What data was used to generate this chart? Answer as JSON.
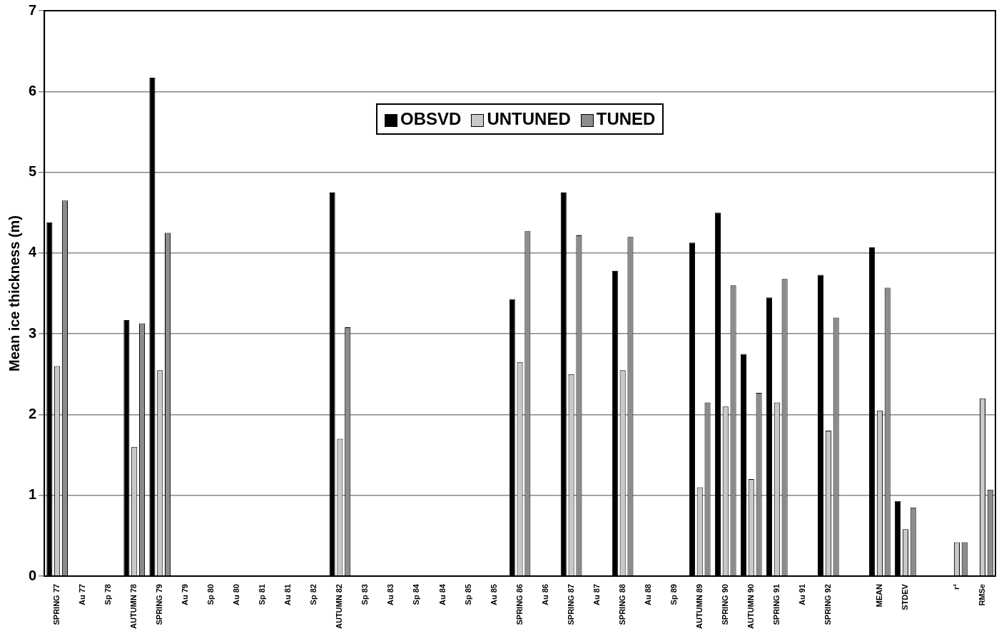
{
  "chart_data": {
    "type": "bar",
    "ylabel": "Mean ice thickness (m)",
    "categories": [
      "SPRING 77",
      "Au 77",
      "Sp 78",
      "AUTUMN 78",
      "SPRING 79",
      "Au 79",
      "Sp 80",
      "Au 80",
      "Sp 81",
      "Au 81",
      "Sp 82",
      "AUTUMN 82",
      "Sp 83",
      "Au 83",
      "Sp 84",
      "Au 84",
      "Sp 85",
      "Au 85",
      "SPRING 86",
      "Au 86",
      "SPRING 87",
      "Au 87",
      "SPRING 88",
      "Au 88",
      "Sp 89",
      "AUTUMN 89",
      "SPRING 90",
      "AUTUMN 90",
      "SPRING 91",
      "Au 91",
      "SPRING 92",
      null,
      "MEAN",
      "STDEV",
      null,
      "r²",
      "RMSe"
    ],
    "series": [
      {
        "name": "OBSVD",
        "color": "#000000",
        "values": [
          4.38,
          null,
          null,
          3.17,
          6.17,
          null,
          null,
          null,
          null,
          null,
          null,
          4.75,
          null,
          null,
          null,
          null,
          null,
          null,
          3.43,
          null,
          4.75,
          null,
          3.78,
          null,
          null,
          4.13,
          4.5,
          2.75,
          3.45,
          null,
          3.73,
          null,
          4.07,
          0.93,
          null,
          null,
          null
        ]
      },
      {
        "name": "UNTUNED",
        "color": "#c8c8c8",
        "values": [
          2.6,
          null,
          null,
          1.6,
          2.55,
          null,
          null,
          null,
          null,
          null,
          null,
          1.7,
          null,
          null,
          null,
          null,
          null,
          null,
          2.65,
          null,
          2.5,
          null,
          2.55,
          null,
          null,
          1.1,
          2.1,
          1.2,
          2.15,
          null,
          1.8,
          null,
          2.05,
          0.58,
          null,
          0.42,
          2.2
        ]
      },
      {
        "name": "TUNED",
        "color": "#8c8c8c",
        "values": [
          4.65,
          null,
          null,
          3.13,
          4.25,
          null,
          null,
          null,
          null,
          null,
          null,
          3.08,
          null,
          null,
          null,
          null,
          null,
          null,
          4.27,
          null,
          4.22,
          null,
          4.2,
          null,
          null,
          2.15,
          3.6,
          2.27,
          3.68,
          null,
          3.2,
          null,
          3.57,
          0.85,
          null,
          0.42,
          1.07
        ]
      }
    ],
    "ylim": [
      0,
      7
    ],
    "yticks": [
      0,
      1,
      2,
      3,
      4,
      5,
      6,
      7
    ],
    "grid": "y",
    "legend": "top"
  }
}
